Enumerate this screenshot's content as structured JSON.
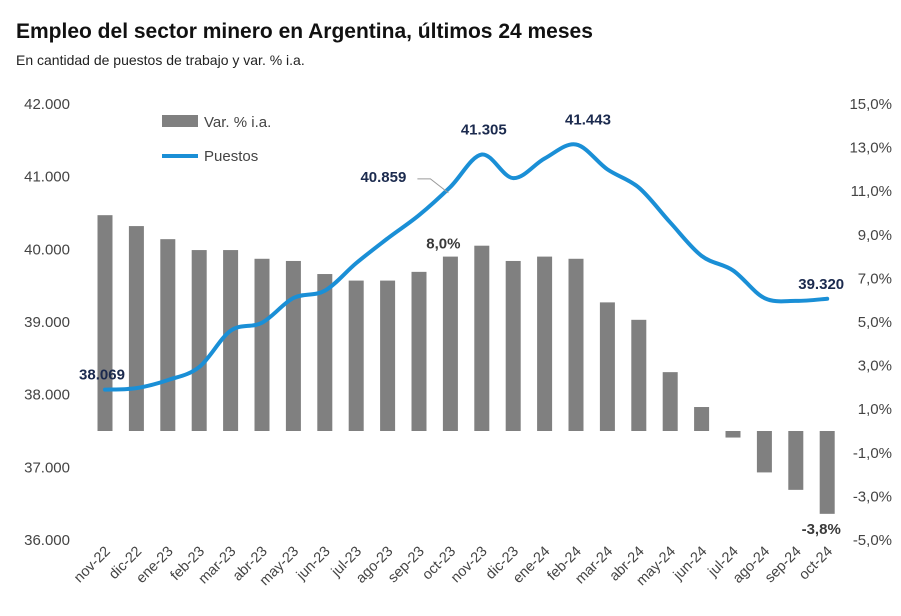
{
  "header": {
    "title": "Empleo del sector minero en Argentina, últimos 24 meses",
    "subtitle": "En cantidad de puestos de trabajo y var. % i.a."
  },
  "chart_data": {
    "type": "bar+line",
    "title": "Empleo del sector minero en Argentina, últimos 24 meses",
    "subtitle": "En cantidad de puestos de trabajo y var. % i.a.",
    "categories": [
      "nov-22",
      "dic-22",
      "ene-23",
      "feb-23",
      "mar-23",
      "abr-23",
      "may-23",
      "jun-23",
      "jul-23",
      "ago-23",
      "sep-23",
      "oct-23",
      "nov-23",
      "dic-23",
      "ene-24",
      "feb-24",
      "mar-24",
      "abr-24",
      "may-24",
      "jun-24",
      "jul-24",
      "ago-24",
      "sep-24",
      "oct-24"
    ],
    "series": [
      {
        "name": "Var. % i.a.",
        "type": "bar",
        "axis": "right",
        "color": "#808080",
        "values": [
          9.9,
          9.4,
          8.8,
          8.3,
          8.3,
          7.9,
          7.8,
          7.2,
          6.9,
          6.9,
          7.3,
          8.0,
          8.5,
          7.8,
          8.0,
          7.9,
          5.9,
          5.1,
          2.7,
          1.1,
          -0.3,
          -1.9,
          -2.7,
          -3.8
        ]
      },
      {
        "name": "Puestos",
        "type": "line",
        "axis": "left",
        "color": "#1a8fd6",
        "values": [
          38069,
          38090,
          38200,
          38380,
          38880,
          38990,
          39330,
          39430,
          39810,
          40150,
          40470,
          40859,
          41305,
          40980,
          41250,
          41443,
          41100,
          40850,
          40370,
          39910,
          39710,
          39330,
          39290,
          39320
        ]
      }
    ],
    "data_labels": {
      "puestos": [
        {
          "index": 0,
          "text": "38.069"
        },
        {
          "index": 11,
          "text": "40.859"
        },
        {
          "index": 12,
          "text": "41.305"
        },
        {
          "index": 15,
          "text": "41.443"
        },
        {
          "index": 23,
          "text": "39.320"
        }
      ],
      "var": [
        {
          "index": 11,
          "text": "8,0%"
        },
        {
          "index": 23,
          "text": "-3,8%"
        }
      ]
    },
    "y_left": {
      "ylim": [
        36000,
        42000
      ],
      "ticks": [
        42000,
        41000,
        40000,
        39000,
        38000,
        37000,
        36000
      ],
      "tick_labels": [
        "42.000",
        "41.000",
        "40.000",
        "39.000",
        "38.000",
        "37.000",
        "36.000"
      ]
    },
    "y_right": {
      "ylim": [
        -5,
        15
      ],
      "ticks": [
        15,
        13,
        11,
        9,
        7,
        5,
        3,
        1,
        -1,
        -3,
        -5
      ],
      "tick_labels": [
        "15,0%",
        "13,0%",
        "11,0%",
        "9,0%",
        "7,0%",
        "5,0%",
        "3,0%",
        "1,0%",
        "-1,0%",
        "-3,0%",
        "-5,0%"
      ]
    },
    "legend": {
      "position": "top-left",
      "entries": [
        "Var. % i.a.",
        "Puestos"
      ]
    },
    "grid": false
  }
}
